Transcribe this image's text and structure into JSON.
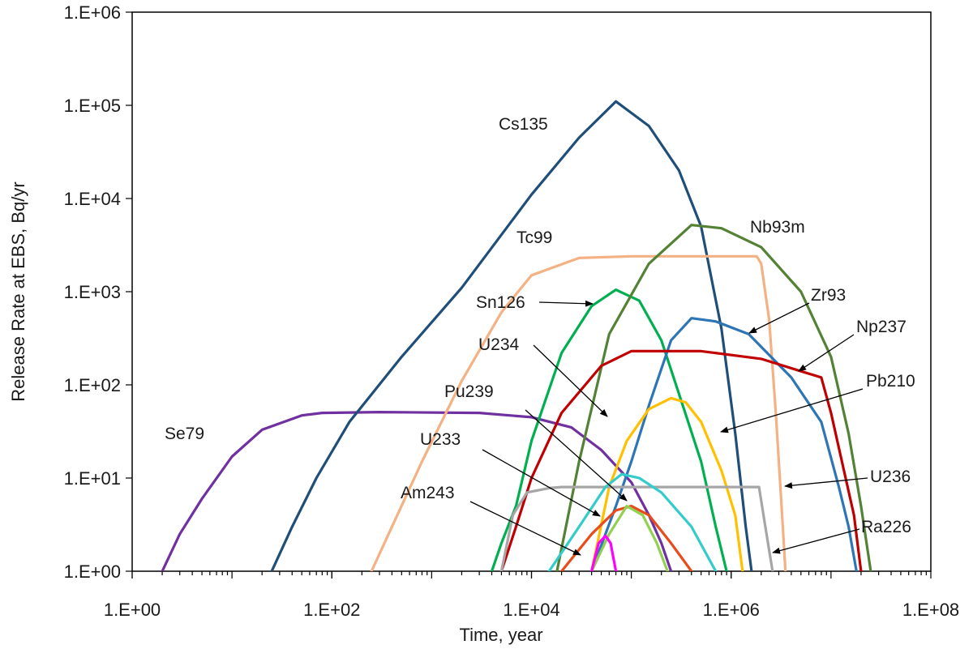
{
  "chart_data": {
    "type": "line",
    "x_scale": "log",
    "y_scale": "log",
    "xlabel": "Time, year",
    "ylabel": "Release Rate at EBS, Bq/yr",
    "xlim": [
      1,
      100000000
    ],
    "ylim": [
      1,
      1000000
    ],
    "x_ticks": [
      1,
      100,
      10000,
      1000000,
      100000000
    ],
    "x_tick_labels": [
      "1.E+00",
      "1.E+02",
      "1.E+04",
      "1.E+06",
      "1.E+08"
    ],
    "y_ticks": [
      1,
      10,
      100,
      1000,
      10000,
      100000,
      1000000
    ],
    "y_tick_labels": [
      "1.E+00",
      "1.E+01",
      "1.E+02",
      "1.E+03",
      "1.E+04",
      "1.E+05",
      "1.E+06"
    ],
    "grid": false,
    "series": [
      {
        "name": "Se79",
        "color": "#7030a0",
        "points": [
          [
            2,
            1
          ],
          [
            3,
            2.5
          ],
          [
            5,
            6
          ],
          [
            10,
            17
          ],
          [
            20,
            33
          ],
          [
            50,
            47
          ],
          [
            80,
            50
          ],
          [
            300,
            51
          ],
          [
            3000,
            50
          ],
          [
            10000,
            45
          ],
          [
            25000,
            35
          ],
          [
            50000,
            20
          ],
          [
            100000,
            9
          ],
          [
            150000,
            4
          ],
          [
            200000,
            2
          ],
          [
            250000,
            1
          ]
        ]
      },
      {
        "name": "Cs135",
        "color": "#1f4e79",
        "points": [
          [
            25,
            1
          ],
          [
            40,
            3
          ],
          [
            70,
            10
          ],
          [
            150,
            40
          ],
          [
            500,
            200
          ],
          [
            2000,
            1100
          ],
          [
            10000,
            11000
          ],
          [
            30000,
            45000
          ],
          [
            70000,
            110000
          ],
          [
            150000,
            60000
          ],
          [
            300000,
            20000
          ],
          [
            500000,
            5000
          ],
          [
            800000,
            400
          ],
          [
            1100000,
            30
          ],
          [
            1400000,
            3
          ],
          [
            1600000,
            1
          ]
        ]
      },
      {
        "name": "Tc99",
        "color": "#f4b183",
        "points": [
          [
            250,
            1
          ],
          [
            400,
            3
          ],
          [
            800,
            15
          ],
          [
            2000,
            110
          ],
          [
            5000,
            600
          ],
          [
            10000,
            1500
          ],
          [
            30000,
            2300
          ],
          [
            100000,
            2400
          ],
          [
            1800000,
            2400
          ],
          [
            2000000,
            2000
          ],
          [
            2400000,
            500
          ],
          [
            2800000,
            50
          ],
          [
            3200000,
            5
          ],
          [
            3500000,
            1
          ]
        ]
      },
      {
        "name": "Sn126",
        "color": "#00b050",
        "points": [
          [
            4000,
            1
          ],
          [
            5000,
            2
          ],
          [
            7000,
            5
          ],
          [
            10000,
            25
          ],
          [
            20000,
            220
          ],
          [
            40000,
            700
          ],
          [
            70000,
            1050
          ],
          [
            120000,
            800
          ],
          [
            200000,
            300
          ],
          [
            300000,
            80
          ],
          [
            500000,
            15
          ],
          [
            700000,
            3
          ],
          [
            900000,
            1
          ]
        ]
      },
      {
        "name": "Nb93m",
        "color": "#548235",
        "points": [
          [
            18000,
            1
          ],
          [
            30000,
            15
          ],
          [
            60000,
            350
          ],
          [
            150000,
            2000
          ],
          [
            400000,
            5200
          ],
          [
            800000,
            4800
          ],
          [
            2000000,
            3000
          ],
          [
            5000000,
            1000
          ],
          [
            10000000,
            200
          ],
          [
            15000000,
            30
          ],
          [
            20000000,
            5
          ],
          [
            25000000,
            1
          ]
        ]
      },
      {
        "name": "Zr93",
        "color": "#2e75b6",
        "points": [
          [
            40000,
            1
          ],
          [
            70000,
            5
          ],
          [
            100000,
            15
          ],
          [
            150000,
            60
          ],
          [
            250000,
            300
          ],
          [
            400000,
            520
          ],
          [
            700000,
            480
          ],
          [
            1500000,
            350
          ],
          [
            4000000,
            120
          ],
          [
            8000000,
            40
          ],
          [
            12000000,
            8
          ],
          [
            15000000,
            3
          ],
          [
            18000000,
            1
          ]
        ]
      },
      {
        "name": "Np237",
        "color": "#c00000",
        "points": [
          [
            5000,
            1
          ],
          [
            7000,
            3
          ],
          [
            10000,
            10
          ],
          [
            20000,
            50
          ],
          [
            50000,
            160
          ],
          [
            100000,
            230
          ],
          [
            500000,
            230
          ],
          [
            2000000,
            190
          ],
          [
            5000000,
            140
          ],
          [
            8000000,
            120
          ],
          [
            10000000,
            50
          ],
          [
            14000000,
            10
          ],
          [
            17000000,
            4
          ],
          [
            20000000,
            1
          ]
        ]
      },
      {
        "name": "Pb210",
        "color": "#ffc000",
        "points": [
          [
            40000,
            1
          ],
          [
            60000,
            8
          ],
          [
            90000,
            25
          ],
          [
            150000,
            55
          ],
          [
            250000,
            72
          ],
          [
            350000,
            65
          ],
          [
            500000,
            40
          ],
          [
            800000,
            12
          ],
          [
            1100000,
            4
          ],
          [
            1300000,
            1
          ]
        ]
      },
      {
        "name": "U236",
        "color": "#a6a6a6",
        "points": [
          [
            5000,
            1
          ],
          [
            6500,
            4
          ],
          [
            9000,
            7
          ],
          [
            15000,
            7.8
          ],
          [
            20000,
            8
          ],
          [
            1900000,
            8
          ],
          [
            2200000,
            3
          ],
          [
            2600000,
            1
          ]
        ]
      },
      {
        "name": "Cyan",
        "color": "#33cccc",
        "points": [
          [
            15000,
            1
          ],
          [
            30000,
            3
          ],
          [
            55000,
            8
          ],
          [
            80000,
            11
          ],
          [
            120000,
            10
          ],
          [
            200000,
            7
          ],
          [
            400000,
            3
          ],
          [
            700000,
            1
          ]
        ]
      },
      {
        "name": "Orange-red",
        "color": "#e84c1a",
        "points": [
          [
            20000,
            1
          ],
          [
            40000,
            2.5
          ],
          [
            70000,
            4.5
          ],
          [
            100000,
            5
          ],
          [
            150000,
            4
          ],
          [
            250000,
            2
          ],
          [
            400000,
            1
          ]
        ]
      },
      {
        "name": "Light green",
        "color": "#92d050",
        "points": [
          [
            40000,
            1
          ],
          [
            60000,
            2.5
          ],
          [
            90000,
            5
          ],
          [
            130000,
            4
          ],
          [
            180000,
            2
          ],
          [
            230000,
            1
          ]
        ]
      },
      {
        "name": "Magenta",
        "color": "#ff00ff",
        "points": [
          [
            40000,
            1
          ],
          [
            47000,
            2
          ],
          [
            55000,
            2.4
          ],
          [
            62000,
            2
          ],
          [
            70000,
            1
          ]
        ]
      }
    ],
    "annotations": [
      {
        "text": "Se79"
      },
      {
        "text": "Cs135"
      },
      {
        "text": "Tc99"
      },
      {
        "text": "Nb93m"
      },
      {
        "text": "Sn126"
      },
      {
        "text": "Zr93"
      },
      {
        "text": "U234"
      },
      {
        "text": "Np237"
      },
      {
        "text": "Pu239"
      },
      {
        "text": "Pb210"
      },
      {
        "text": "U233"
      },
      {
        "text": "Am243"
      },
      {
        "text": "U236"
      },
      {
        "text": "Ra226"
      }
    ]
  }
}
